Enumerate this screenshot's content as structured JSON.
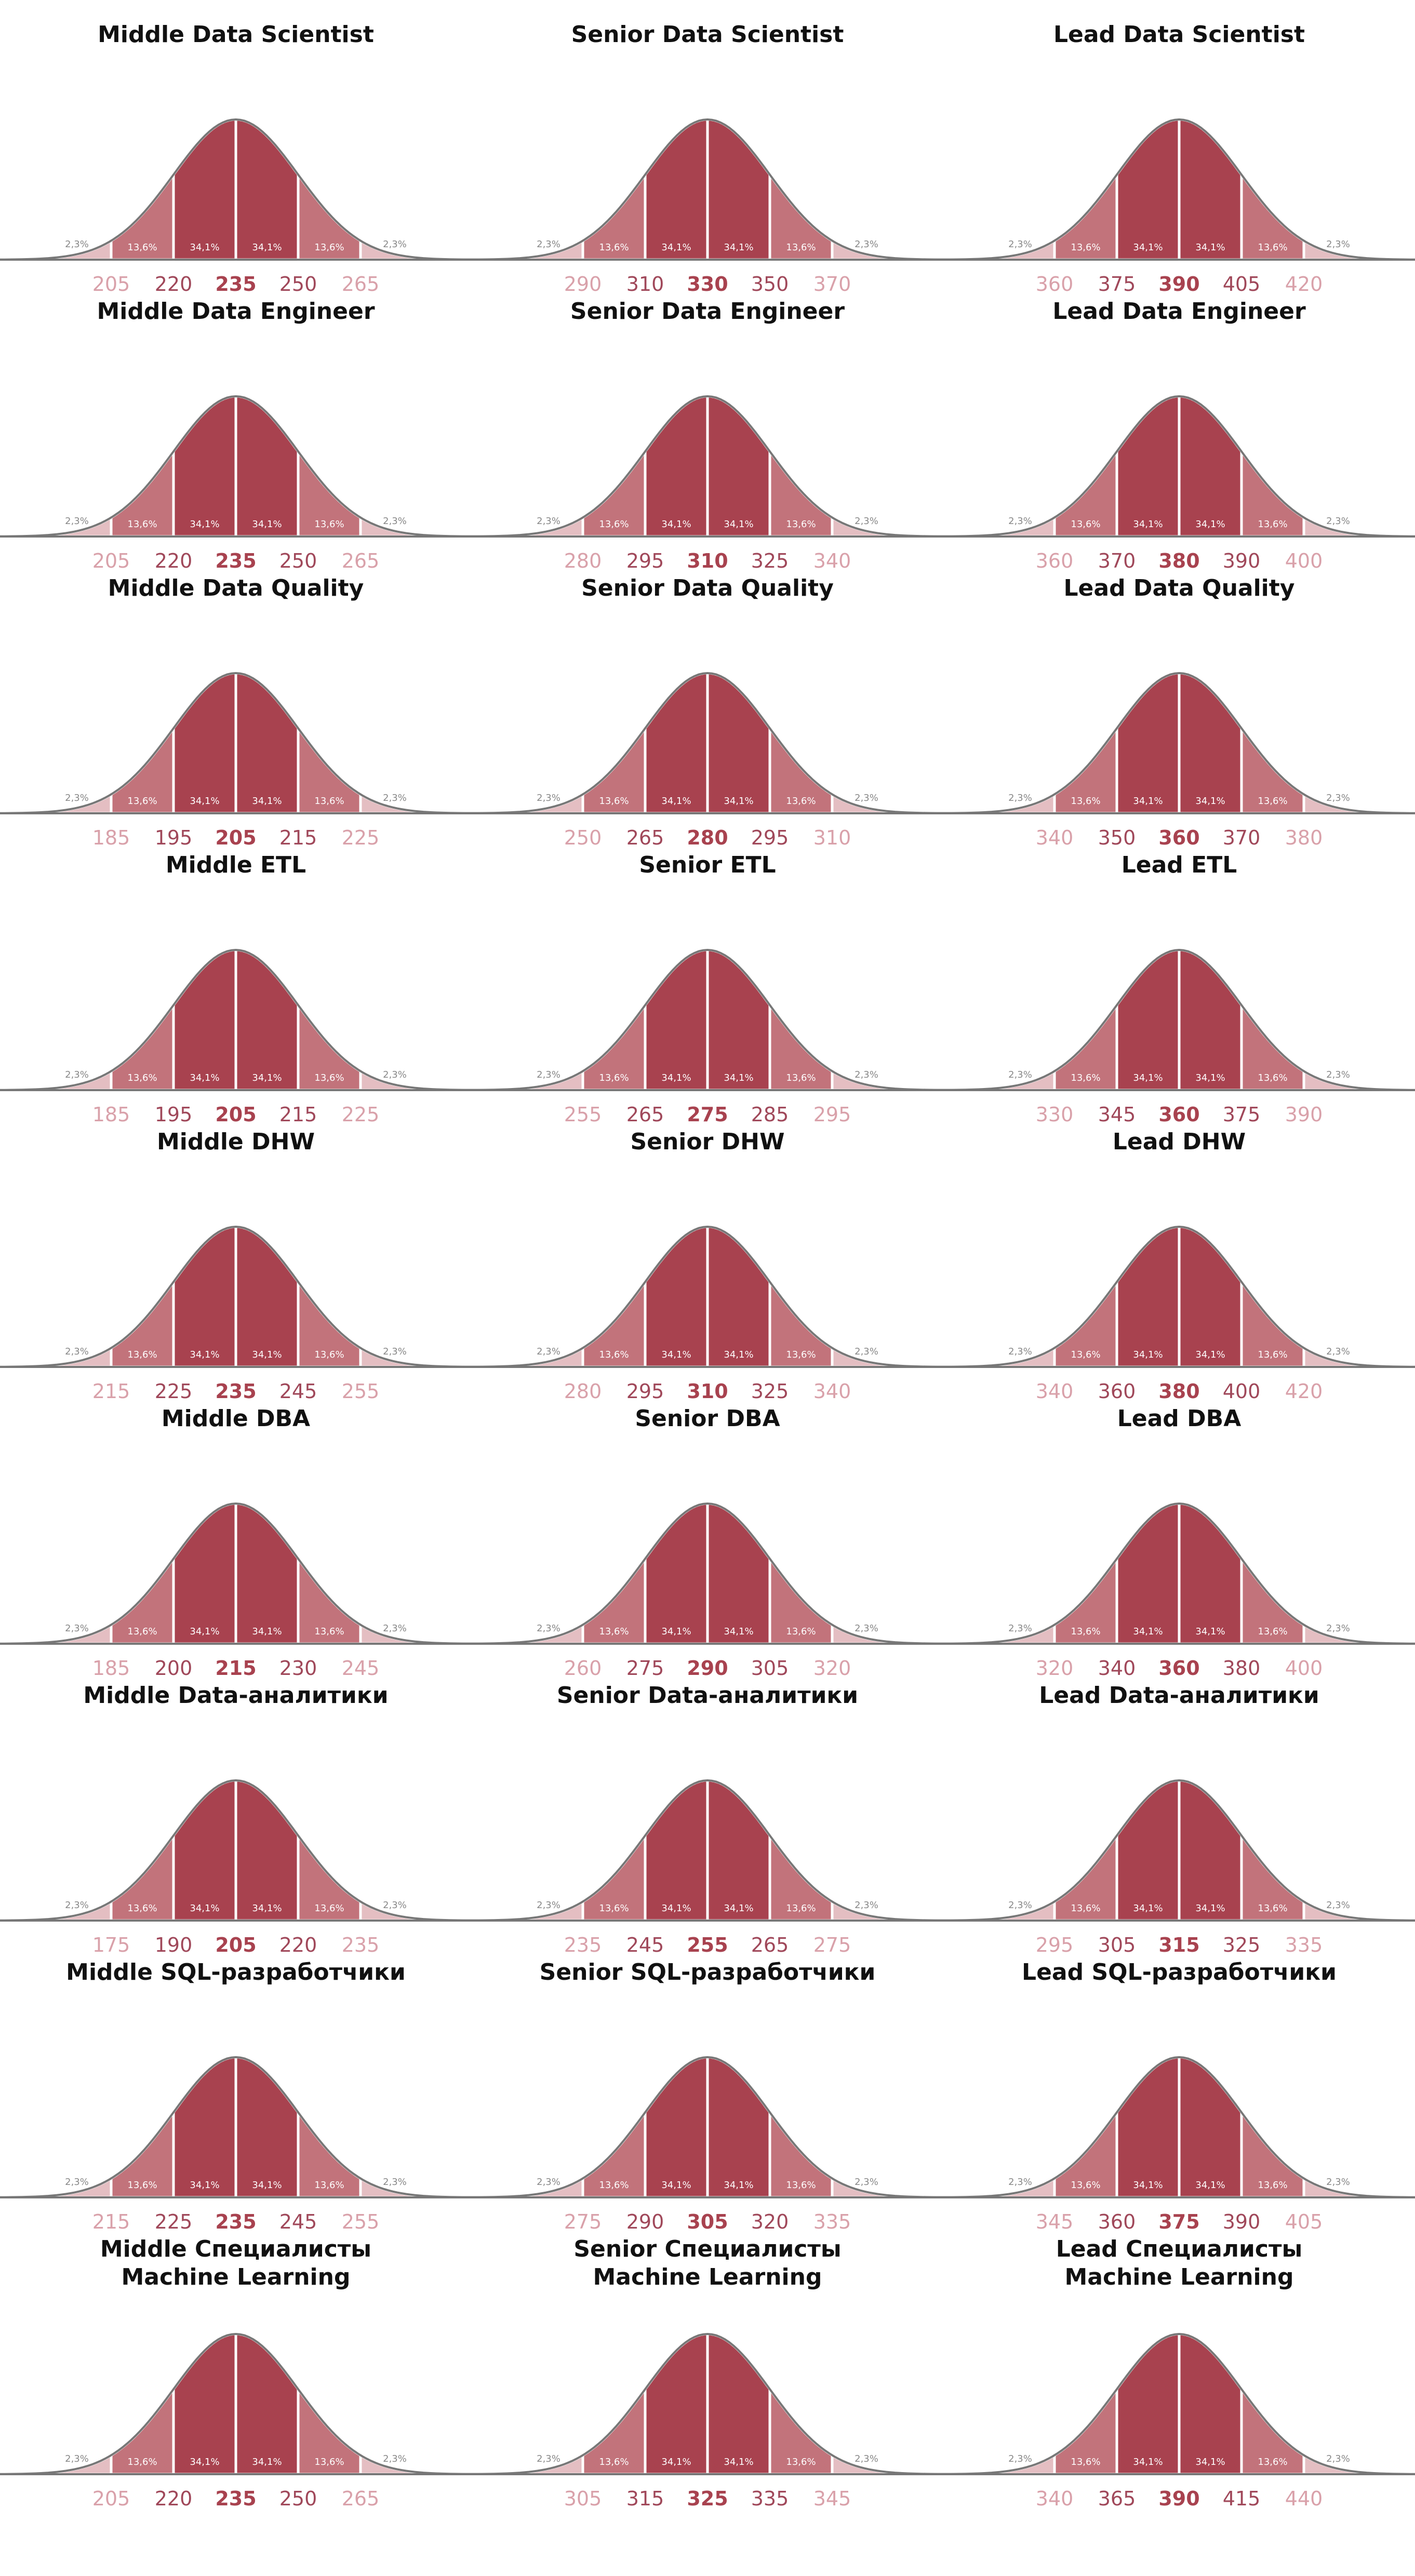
{
  "chart_data": [
    {
      "type": "bell",
      "title_level": "Middle",
      "title_role": "Data Scientist",
      "values": [
        205,
        220,
        235,
        250,
        265
      ],
      "pct": [
        "2,3%",
        "13,6%",
        "34,1%",
        "34,1%",
        "13,6%",
        "2,3%"
      ]
    },
    {
      "type": "bell",
      "title_level": "Senior",
      "title_role": "Data Scientist",
      "values": [
        290,
        310,
        330,
        350,
        370
      ],
      "pct": [
        "2,3%",
        "13,6%",
        "34,1%",
        "34,1%",
        "13,6%",
        "2,3%"
      ]
    },
    {
      "type": "bell",
      "title_level": "Lead",
      "title_role": "Data Scientist",
      "values": [
        360,
        375,
        390,
        405,
        420
      ],
      "pct": [
        "2,3%",
        "13,6%",
        "34,1%",
        "34,1%",
        "13,6%",
        "2,3%"
      ]
    },
    {
      "type": "bell",
      "title_level": "Middle",
      "title_role": "Data Engineer",
      "values": [
        205,
        220,
        235,
        250,
        265
      ],
      "pct": [
        "2,3%",
        "13,6%",
        "34,1%",
        "34,1%",
        "13,6%",
        "2,3%"
      ]
    },
    {
      "type": "bell",
      "title_level": "Senior",
      "title_role": "Data Engineer",
      "values": [
        280,
        295,
        310,
        325,
        340
      ],
      "pct": [
        "2,3%",
        "13,6%",
        "34,1%",
        "34,1%",
        "13,6%",
        "2,3%"
      ]
    },
    {
      "type": "bell",
      "title_level": "Lead",
      "title_role": "Data Engineer",
      "values": [
        360,
        370,
        380,
        390,
        400
      ],
      "pct": [
        "2,3%",
        "13,6%",
        "34,1%",
        "34,1%",
        "13,6%",
        "2,3%"
      ]
    },
    {
      "type": "bell",
      "title_level": "Middle",
      "title_role": "Data Quality",
      "values": [
        185,
        195,
        205,
        215,
        225
      ],
      "pct": [
        "2,3%",
        "13,6%",
        "34,1%",
        "34,1%",
        "13,6%",
        "2,3%"
      ]
    },
    {
      "type": "bell",
      "title_level": "Senior",
      "title_role": "Data Quality",
      "values": [
        250,
        265,
        280,
        295,
        310
      ],
      "pct": [
        "2,3%",
        "13,6%",
        "34,1%",
        "34,1%",
        "13,6%",
        "2,3%"
      ]
    },
    {
      "type": "bell",
      "title_level": "Lead",
      "title_role": "Data Quality",
      "values": [
        340,
        350,
        360,
        370,
        380
      ],
      "pct": [
        "2,3%",
        "13,6%",
        "34,1%",
        "34,1%",
        "13,6%",
        "2,3%"
      ]
    },
    {
      "type": "bell",
      "title_level": "Middle",
      "title_role": "ETL",
      "values": [
        185,
        195,
        205,
        215,
        225
      ],
      "pct": [
        "2,3%",
        "13,6%",
        "34,1%",
        "34,1%",
        "13,6%",
        "2,3%"
      ]
    },
    {
      "type": "bell",
      "title_level": "Senior",
      "title_role": "ETL",
      "values": [
        255,
        265,
        275,
        285,
        295
      ],
      "pct": [
        "2,3%",
        "13,6%",
        "34,1%",
        "34,1%",
        "13,6%",
        "2,3%"
      ]
    },
    {
      "type": "bell",
      "title_level": "Lead",
      "title_role": "ETL",
      "values": [
        330,
        345,
        360,
        375,
        390
      ],
      "pct": [
        "2,3%",
        "13,6%",
        "34,1%",
        "34,1%",
        "13,6%",
        "2,3%"
      ]
    },
    {
      "type": "bell",
      "title_level": "Middle",
      "title_role": "DHW",
      "values": [
        215,
        225,
        235,
        245,
        255
      ],
      "pct": [
        "2,3%",
        "13,6%",
        "34,1%",
        "34,1%",
        "13,6%",
        "2,3%"
      ]
    },
    {
      "type": "bell",
      "title_level": "Senior",
      "title_role": "DHW",
      "values": [
        280,
        295,
        310,
        325,
        340
      ],
      "pct": [
        "2,3%",
        "13,6%",
        "34,1%",
        "34,1%",
        "13,6%",
        "2,3%"
      ]
    },
    {
      "type": "bell",
      "title_level": "Lead",
      "title_role": "DHW",
      "values": [
        340,
        360,
        380,
        400,
        420
      ],
      "pct": [
        "2,3%",
        "13,6%",
        "34,1%",
        "34,1%",
        "13,6%",
        "2,3%"
      ]
    },
    {
      "type": "bell",
      "title_level": "Middle",
      "title_role": "DBA",
      "values": [
        185,
        200,
        215,
        230,
        245
      ],
      "pct": [
        "2,3%",
        "13,6%",
        "34,1%",
        "34,1%",
        "13,6%",
        "2,3%"
      ]
    },
    {
      "type": "bell",
      "title_level": "Senior",
      "title_role": "DBA",
      "values": [
        260,
        275,
        290,
        305,
        320
      ],
      "pct": [
        "2,3%",
        "13,6%",
        "34,1%",
        "34,1%",
        "13,6%",
        "2,3%"
      ]
    },
    {
      "type": "bell",
      "title_level": "Lead",
      "title_role": "DBA",
      "values": [
        320,
        340,
        360,
        380,
        400
      ],
      "pct": [
        "2,3%",
        "13,6%",
        "34,1%",
        "34,1%",
        "13,6%",
        "2,3%"
      ]
    },
    {
      "type": "bell",
      "title_level": "Middle",
      "title_role": "Data-аналитики",
      "values": [
        175,
        190,
        205,
        220,
        235
      ],
      "pct": [
        "2,3%",
        "13,6%",
        "34,1%",
        "34,1%",
        "13,6%",
        "2,3%"
      ]
    },
    {
      "type": "bell",
      "title_level": "Senior",
      "title_role": "Data-аналитики",
      "values": [
        235,
        245,
        255,
        265,
        275
      ],
      "pct": [
        "2,3%",
        "13,6%",
        "34,1%",
        "34,1%",
        "13,6%",
        "2,3%"
      ]
    },
    {
      "type": "bell",
      "title_level": "Lead",
      "title_role": "Data-аналитики",
      "values": [
        295,
        305,
        315,
        325,
        335
      ],
      "pct": [
        "2,3%",
        "13,6%",
        "34,1%",
        "34,1%",
        "13,6%",
        "2,3%"
      ]
    },
    {
      "type": "bell",
      "title_level": "Middle",
      "title_role": "SQL-разработчики",
      "values": [
        215,
        225,
        235,
        245,
        255
      ],
      "pct": [
        "2,3%",
        "13,6%",
        "34,1%",
        "34,1%",
        "13,6%",
        "2,3%"
      ]
    },
    {
      "type": "bell",
      "title_level": "Senior",
      "title_role": "SQL-разработчики",
      "values": [
        275,
        290,
        305,
        320,
        335
      ],
      "pct": [
        "2,3%",
        "13,6%",
        "34,1%",
        "34,1%",
        "13,6%",
        "2,3%"
      ]
    },
    {
      "type": "bell",
      "title_level": "Lead",
      "title_role": "SQL-разработчики",
      "values": [
        345,
        360,
        375,
        390,
        405
      ],
      "pct": [
        "2,3%",
        "13,6%",
        "34,1%",
        "34,1%",
        "13,6%",
        "2,3%"
      ]
    },
    {
      "type": "bell",
      "title_level": "Middle",
      "title_role": "Специалисты\nMachine Learning",
      "values": [
        205,
        220,
        235,
        250,
        265
      ],
      "pct": [
        "2,3%",
        "13,6%",
        "34,1%",
        "34,1%",
        "13,6%",
        "2,3%"
      ]
    },
    {
      "type": "bell",
      "title_level": "Senior",
      "title_role": "Специалисты\nMachine Learning",
      "values": [
        305,
        315,
        325,
        335,
        345
      ],
      "pct": [
        "2,3%",
        "13,6%",
        "34,1%",
        "34,1%",
        "13,6%",
        "2,3%"
      ]
    },
    {
      "type": "bell",
      "title_level": "Lead",
      "title_role": "Специалисты\nMachine Learning",
      "values": [
        340,
        365,
        390,
        415,
        440
      ],
      "pct": [
        "2,3%",
        "13,6%",
        "34,1%",
        "34,1%",
        "13,6%",
        "2,3%"
      ]
    }
  ],
  "colors": {
    "center": "#a8424f",
    "inner": "#c2737b",
    "tail": "#e4bec2",
    "edge": "#777777",
    "label_center": "#a8424f",
    "label_inner": "#a0485a",
    "label_outer": "#d9a1aa",
    "tail_text": "#888888",
    "pct_text": "#ffffff"
  }
}
